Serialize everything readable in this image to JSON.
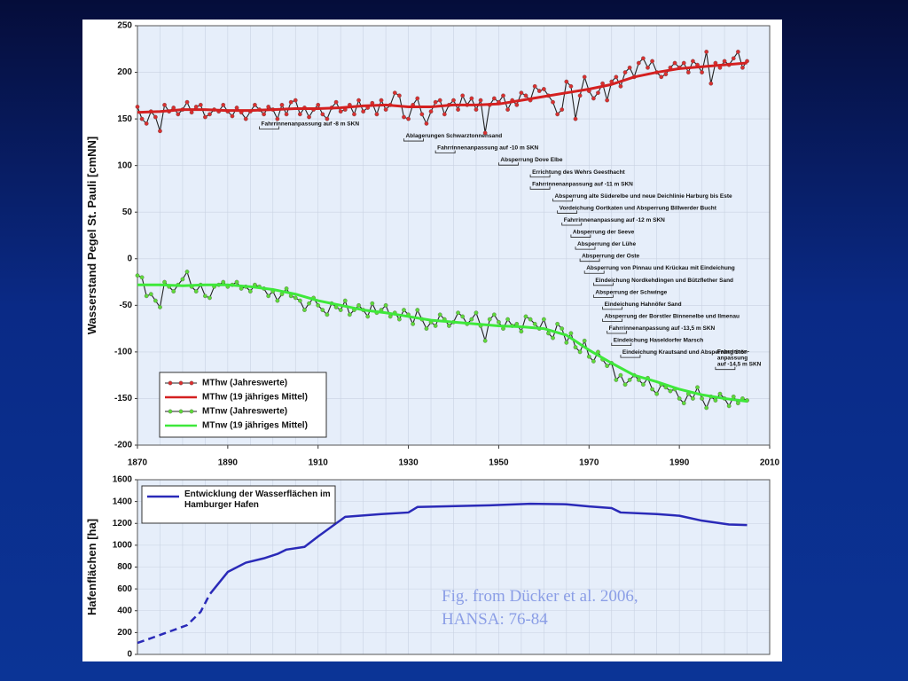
{
  "chart_data": [
    {
      "type": "line",
      "y_label": "Wasserstand Pegel St. Pauli [cmNN]",
      "xlim": [
        1870,
        2010
      ],
      "xticks": [
        1870,
        1890,
        1910,
        1930,
        1950,
        1970,
        1990,
        2010
      ],
      "ylim": [
        -200,
        250
      ],
      "yticks": [
        -200,
        -150,
        -100,
        -50,
        0,
        50,
        100,
        150,
        200,
        250
      ],
      "grid": true,
      "legend": "lower left",
      "x": [
        1870,
        1871,
        1872,
        1873,
        1874,
        1875,
        1876,
        1877,
        1878,
        1879,
        1880,
        1881,
        1882,
        1883,
        1884,
        1885,
        1886,
        1887,
        1888,
        1889,
        1890,
        1891,
        1892,
        1893,
        1894,
        1895,
        1896,
        1897,
        1898,
        1899,
        1900,
        1901,
        1902,
        1903,
        1904,
        1905,
        1906,
        1907,
        1908,
        1909,
        1910,
        1911,
        1912,
        1913,
        1914,
        1915,
        1916,
        1917,
        1918,
        1919,
        1920,
        1921,
        1922,
        1923,
        1924,
        1925,
        1926,
        1927,
        1928,
        1929,
        1930,
        1931,
        1932,
        1933,
        1934,
        1935,
        1936,
        1937,
        1938,
        1939,
        1940,
        1941,
        1942,
        1943,
        1944,
        1945,
        1946,
        1947,
        1948,
        1949,
        1950,
        1951,
        1952,
        1953,
        1954,
        1955,
        1956,
        1957,
        1958,
        1959,
        1960,
        1961,
        1962,
        1963,
        1964,
        1965,
        1966,
        1967,
        1968,
        1969,
        1970,
        1971,
        1972,
        1973,
        1974,
        1975,
        1976,
        1977,
        1978,
        1979,
        1980,
        1981,
        1982,
        1983,
        1984,
        1985,
        1986,
        1987,
        1988,
        1989,
        1990,
        1991,
        1992,
        1993,
        1994,
        1995,
        1996,
        1997,
        1998,
        1999,
        2000,
        2001,
        2002,
        2003,
        2004,
        2005
      ],
      "series": [
        {
          "name": "MThw (Jahreswerte)",
          "color": "#d83030",
          "line_color": "#222222",
          "markers": true,
          "values": [
            163,
            150,
            145,
            158,
            152,
            137,
            165,
            158,
            162,
            155,
            160,
            168,
            157,
            163,
            165,
            152,
            155,
            160,
            158,
            165,
            158,
            153,
            162,
            157,
            150,
            158,
            165,
            160,
            155,
            163,
            160,
            150,
            165,
            155,
            168,
            170,
            155,
            162,
            152,
            160,
            165,
            155,
            150,
            162,
            168,
            158,
            160,
            165,
            155,
            170,
            158,
            162,
            167,
            155,
            170,
            160,
            165,
            178,
            175,
            152,
            150,
            165,
            172,
            155,
            145,
            158,
            168,
            170,
            155,
            165,
            170,
            160,
            175,
            165,
            172,
            160,
            170,
            135,
            165,
            172,
            168,
            175,
            160,
            170,
            165,
            178,
            175,
            170,
            185,
            180,
            182,
            175,
            168,
            155,
            160,
            190,
            185,
            150,
            175,
            195,
            180,
            172,
            178,
            188,
            170,
            190,
            195,
            185,
            200,
            205,
            195,
            210,
            215,
            205,
            212,
            200,
            195,
            198,
            205,
            210,
            205,
            210,
            200,
            212,
            208,
            200,
            222,
            188,
            210,
            205,
            212,
            208,
            215,
            222,
            205,
            212
          ]
        },
        {
          "name": "MThw (19 jähriges Mittel)",
          "color": "#d42020",
          "markers": false,
          "x": [
            1870,
            1875,
            1880,
            1885,
            1890,
            1895,
            1900,
            1905,
            1910,
            1915,
            1920,
            1925,
            1930,
            1935,
            1940,
            1945,
            1950,
            1955,
            1960,
            1965,
            1970,
            1975,
            1980,
            1985,
            1990,
            1995,
            2000,
            2005
          ],
          "values": [
            157,
            158,
            160,
            160,
            159,
            159,
            160,
            161,
            161,
            162,
            164,
            165,
            163,
            163,
            165,
            165,
            166,
            170,
            174,
            178,
            182,
            187,
            195,
            200,
            204,
            206,
            208,
            210
          ]
        },
        {
          "name": "MTnw (Jahreswerte)",
          "color": "#5ed83a",
          "line_color": "#222222",
          "markers": true,
          "values": [
            -18,
            -20,
            -40,
            -38,
            -45,
            -52,
            -25,
            -30,
            -35,
            -28,
            -22,
            -14,
            -30,
            -35,
            -28,
            -40,
            -42,
            -30,
            -28,
            -25,
            -30,
            -28,
            -25,
            -32,
            -30,
            -35,
            -28,
            -30,
            -32,
            -40,
            -35,
            -45,
            -38,
            -32,
            -40,
            -42,
            -45,
            -55,
            -48,
            -42,
            -50,
            -55,
            -60,
            -48,
            -52,
            -55,
            -45,
            -60,
            -55,
            -50,
            -55,
            -62,
            -48,
            -58,
            -55,
            -50,
            -62,
            -58,
            -65,
            -55,
            -60,
            -70,
            -55,
            -65,
            -75,
            -68,
            -72,
            -60,
            -65,
            -72,
            -68,
            -58,
            -62,
            -70,
            -65,
            -58,
            -72,
            -88,
            -65,
            -60,
            -68,
            -75,
            -65,
            -72,
            -70,
            -78,
            -62,
            -65,
            -70,
            -75,
            -65,
            -80,
            -85,
            -70,
            -75,
            -90,
            -80,
            -95,
            -100,
            -88,
            -105,
            -110,
            -100,
            -108,
            -115,
            -112,
            -130,
            -125,
            -135,
            -130,
            -125,
            -130,
            -135,
            -128,
            -140,
            -145,
            -135,
            -138,
            -142,
            -140,
            -150,
            -155,
            -145,
            -150,
            -138,
            -150,
            -160,
            -148,
            -152,
            -145,
            -150,
            -158,
            -148,
            -155,
            -150,
            -152
          ]
        },
        {
          "name": "MTnw (19 jähriges Mittel)",
          "color": "#3ee83a",
          "markers": false,
          "x": [
            1870,
            1875,
            1880,
            1885,
            1890,
            1895,
            1900,
            1905,
            1910,
            1915,
            1920,
            1925,
            1930,
            1935,
            1940,
            1945,
            1950,
            1955,
            1960,
            1965,
            1970,
            1975,
            1980,
            1985,
            1990,
            1995,
            2000,
            2005
          ],
          "values": [
            -28,
            -28,
            -29,
            -28,
            -28,
            -30,
            -33,
            -38,
            -45,
            -50,
            -55,
            -58,
            -62,
            -66,
            -68,
            -70,
            -72,
            -73,
            -75,
            -82,
            -98,
            -112,
            -125,
            -132,
            -140,
            -146,
            -150,
            -153
          ]
        }
      ],
      "annotations": [
        {
          "lines": [
            "Fahrrinnenanpassung auf -8 m SKN"
          ],
          "x": 1897
        },
        {
          "lines": [
            "Ablagerungen Schwarztonnensand"
          ],
          "x": 1929
        },
        {
          "lines": [
            "Fahrrinnenanpassung auf -10 m SKN"
          ],
          "x": 1936
        },
        {
          "lines": [
            "Absperrung Dove Elbe"
          ],
          "x": 1950
        },
        {
          "lines": [
            "Errichtung des Wehrs Geesthacht"
          ],
          "x": 1957
        },
        {
          "lines": [
            "Fahrrinnenanpassung auf -11 m SKN"
          ],
          "x": 1957
        },
        {
          "lines": [
            "Absperrung alte Süderelbe und neue Deichlinie Harburg bis Este"
          ],
          "x": 1962
        },
        {
          "lines": [
            "Vordeichung Oortkaten und Absperrung Billwerder Bucht"
          ],
          "x": 1963
        },
        {
          "lines": [
            "Fahrrinnenanpassung auf -12 m SKN"
          ],
          "x": 1964
        },
        {
          "lines": [
            "Absperrung der Seeve"
          ],
          "x": 1966
        },
        {
          "lines": [
            "Absperrung der Lühe"
          ],
          "x": 1967
        },
        {
          "lines": [
            "Absperrung der Oste"
          ],
          "x": 1968
        },
        {
          "lines": [
            "Absperrung von Pinnau und Krückau mit Eindeichung"
          ],
          "x": 1969
        },
        {
          "lines": [
            "Eindeichung Nordkehdingen und Bützflether Sand"
          ],
          "x": 1971
        },
        {
          "lines": [
            "Absperrung der Schwinge"
          ],
          "x": 1971
        },
        {
          "lines": [
            "Eindeichung Hahnöfer Sand"
          ],
          "x": 1973
        },
        {
          "lines": [
            "Absperrung der Borstler Binnenelbe und Ilmenau"
          ],
          "x": 1973
        },
        {
          "lines": [
            "Fahrrinnenanpassung auf -13,5 m SKN"
          ],
          "x": 1974
        },
        {
          "lines": [
            "Eindeichung Haseldorfer Marsch"
          ],
          "x": 1975
        },
        {
          "lines": [
            "Eindeichung Krautsand und Absperrung Stör"
          ],
          "x": 1977
        },
        {
          "lines": [
            "Fahrrinnen-",
            "anpassung",
            "auf -14,5 m SKN"
          ],
          "x": 1998
        }
      ]
    },
    {
      "type": "line",
      "y_label": "Hafenflächen [ha]",
      "xlim": [
        1870,
        2010
      ],
      "ylim": [
        0,
        1600
      ],
      "yticks": [
        0,
        200,
        400,
        600,
        800,
        1000,
        1200,
        1400,
        1600
      ],
      "grid": true,
      "legend": "upper left",
      "x": [
        1870,
        1874,
        1881,
        1884,
        1886,
        1890,
        1894,
        1898,
        1901,
        1903,
        1907,
        1910,
        1916,
        1924,
        1930,
        1932,
        1948,
        1957,
        1965,
        1970,
        1975,
        1977,
        1985,
        1990,
        1995,
        2001,
        2005
      ],
      "series": [
        {
          "name": "Entwicklung der Wasserflächen im Hamburger Hafen",
          "color": "#2a2ab8",
          "markers": false,
          "dashed_before": 1888,
          "values": [
            105,
            163,
            268,
            390,
            550,
            755,
            840,
            880,
            920,
            960,
            985,
            1080,
            1260,
            1285,
            1300,
            1350,
            1365,
            1380,
            1375,
            1355,
            1340,
            1300,
            1285,
            1270,
            1225,
            1190,
            1185
          ]
        }
      ]
    }
  ],
  "caption": [
    "Fig. from Dücker et al. 2006,",
    "HANSA: 76-84"
  ]
}
